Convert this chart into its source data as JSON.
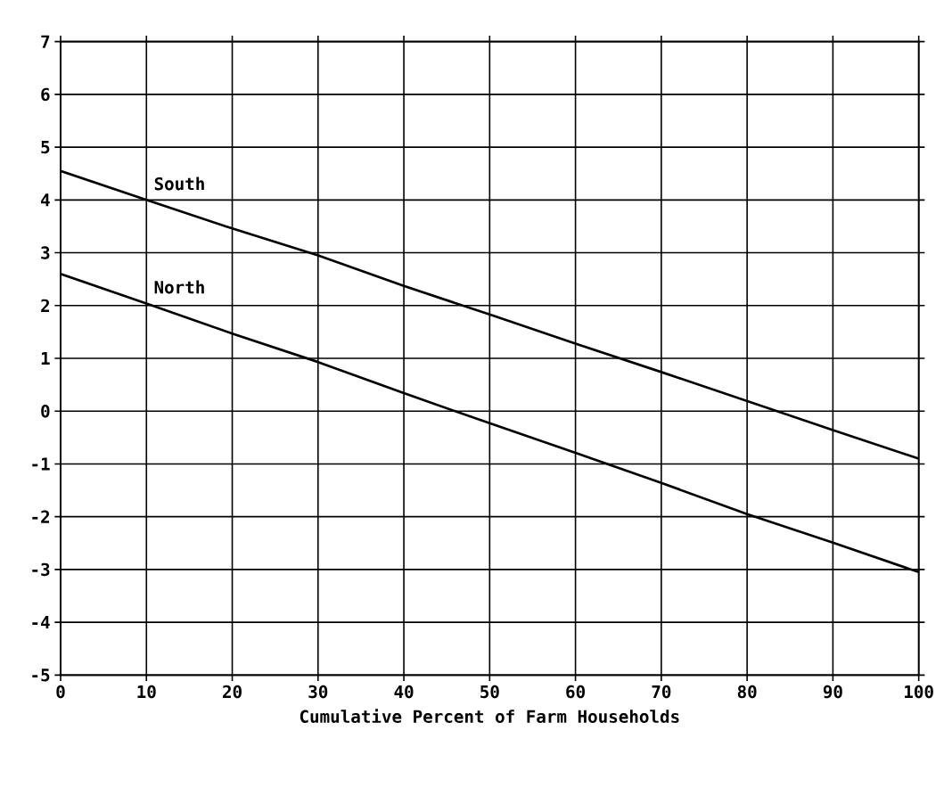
{
  "chart_data": {
    "type": "line",
    "xlabel": "Cumulative Percent of Farm Households",
    "series": [
      {
        "name": "South",
        "color": "#000000",
        "x": [
          0,
          10,
          20,
          30,
          40,
          50,
          60,
          70,
          80,
          90,
          100
        ],
        "values": [
          4.55,
          4.0,
          3.46,
          2.95,
          2.37,
          1.83,
          1.28,
          0.74,
          0.19,
          -0.36,
          -0.9
        ]
      },
      {
        "name": "North",
        "color": "#000000",
        "x": [
          0,
          10,
          20,
          30,
          40,
          50,
          60,
          70,
          80,
          90,
          100
        ],
        "values": [
          2.6,
          2.04,
          1.47,
          0.93,
          0.34,
          -0.23,
          -0.79,
          -1.36,
          -1.95,
          -2.49,
          -3.05
        ]
      }
    ],
    "xlim": [
      0,
      100
    ],
    "ylim": [
      -5,
      7
    ],
    "xticks": [
      0,
      10,
      20,
      30,
      40,
      50,
      60,
      70,
      80,
      90,
      100
    ],
    "yticks": [
      -5,
      -4,
      -3,
      -2,
      -1,
      0,
      1,
      2,
      3,
      4,
      5,
      6,
      7
    ],
    "grid": true,
    "marker": "none",
    "line_style": "solid"
  }
}
